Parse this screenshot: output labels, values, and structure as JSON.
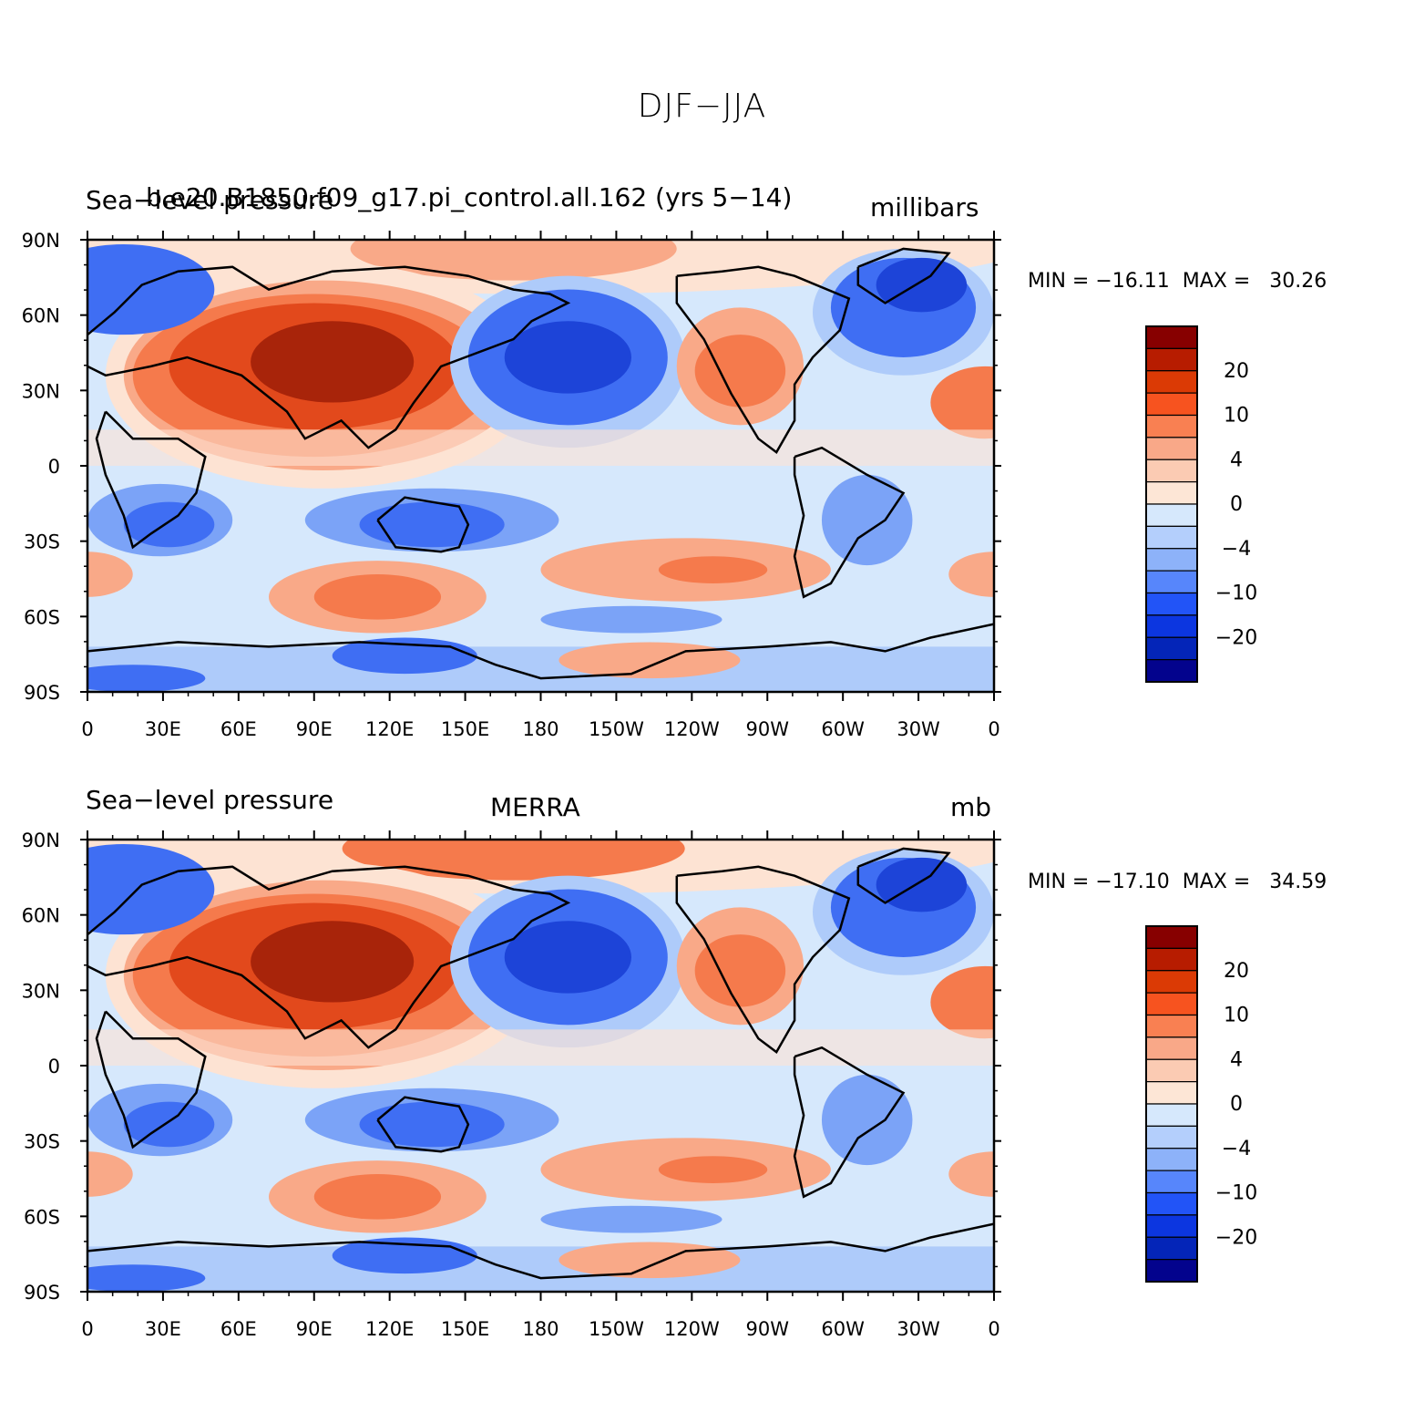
{
  "title": "DJF−JJA",
  "panels": [
    {
      "left_label": "Sea−level pressure",
      "center_label": "b.e20.B1850.f09_g17.pi_control.all.162 (yrs 5−14)",
      "right_label": "millibars",
      "minmax": "MIN = −16.11  MAX =   30.26",
      "lat_ticks": [
        "90N",
        "60N",
        "30N",
        "0",
        "30S",
        "60S",
        "90S"
      ],
      "lon_ticks": [
        "0",
        "30E",
        "60E",
        "90E",
        "120E",
        "150E",
        "180",
        "150W",
        "120W",
        "90W",
        "60W",
        "30W",
        "0"
      ],
      "colorbar_labels": [
        "20",
        "10",
        "4",
        "0",
        "−4",
        "−10",
        "−20"
      ]
    },
    {
      "left_label": "Sea−level pressure",
      "center_label": "MERRA",
      "right_label": "mb",
      "minmax": "MIN = −17.10  MAX =   34.59",
      "lat_ticks": [
        "90N",
        "60N",
        "30N",
        "0",
        "30S",
        "60S",
        "90S"
      ],
      "lon_ticks": [
        "0",
        "30E",
        "60E",
        "90E",
        "120E",
        "150E",
        "180",
        "150W",
        "120W",
        "90W",
        "60W",
        "30W",
        "0"
      ],
      "colorbar_labels": [
        "20",
        "10",
        "4",
        "0",
        "−4",
        "−10",
        "−20"
      ]
    }
  ],
  "colorbar_colors": [
    "#870000",
    "#b71c00",
    "#db3a05",
    "#f7531f",
    "#f98052",
    "#f9a888",
    "#fbcbb3",
    "#fde6d6",
    "#d6e8fc",
    "#b4cffc",
    "#8db2f9",
    "#5786fb",
    "#2254f7",
    "#0c36e0",
    "#0425b8",
    "#03038d"
  ]
}
